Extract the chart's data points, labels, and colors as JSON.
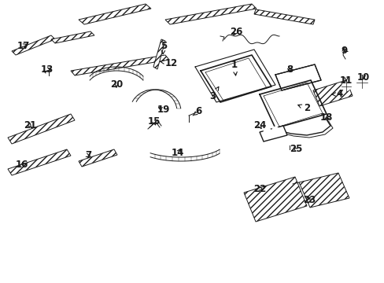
{
  "bg_color": "#ffffff",
  "line_color": "#1a1a1a",
  "fig_width": 4.89,
  "fig_height": 3.6,
  "dpi": 100,
  "label_fontsize": 8.5,
  "label_fontweight": "bold"
}
